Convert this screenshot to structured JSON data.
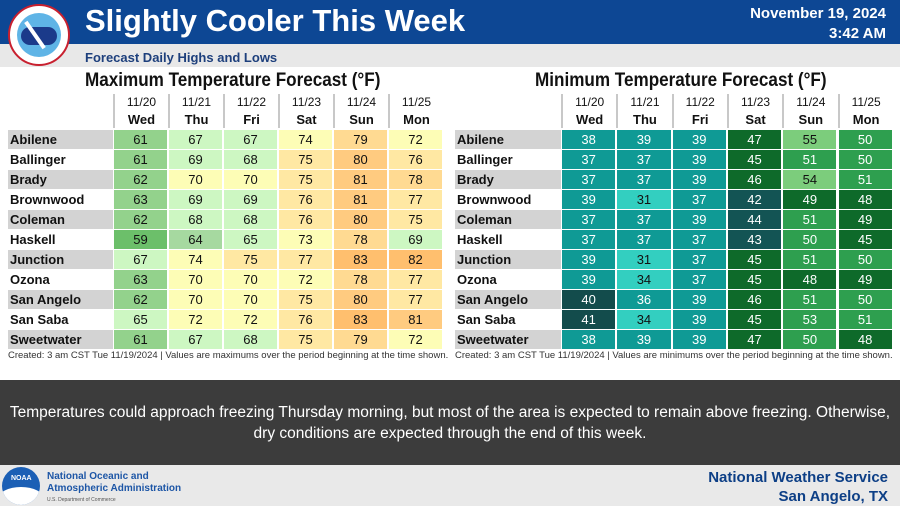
{
  "header": {
    "title": "Slightly Cooler This Week",
    "subtitle": "Forecast Daily Highs and Lows",
    "date": "November 19, 2024",
    "time": "3:42 AM",
    "logo_text": "NATIONAL WEATHER SERVICE"
  },
  "days": [
    {
      "date": "11/20",
      "day": "Wed"
    },
    {
      "date": "11/21",
      "day": "Thu"
    },
    {
      "date": "11/22",
      "day": "Fri"
    },
    {
      "date": "11/23",
      "day": "Sat"
    },
    {
      "date": "11/24",
      "day": "Sun"
    },
    {
      "date": "11/25",
      "day": "Mon"
    }
  ],
  "cities": [
    "Abilene",
    "Ballinger",
    "Brady",
    "Brownwood",
    "Coleman",
    "Haskell",
    "Junction",
    "Ozona",
    "San Angelo",
    "San Saba",
    "Sweetwater"
  ],
  "max_table": {
    "title": "Maximum Temperature Forecast (°F)",
    "footnote": "Created: 3 am CST Tue 11/19/2024  |  Values are maximums over the period beginning at the time shown.",
    "values": [
      [
        61,
        67,
        67,
        74,
        79,
        72
      ],
      [
        61,
        69,
        68,
        75,
        80,
        76
      ],
      [
        62,
        70,
        70,
        75,
        81,
        78
      ],
      [
        63,
        69,
        69,
        76,
        81,
        77
      ],
      [
        62,
        68,
        68,
        76,
        80,
        75
      ],
      [
        59,
        64,
        65,
        73,
        78,
        69
      ],
      [
        67,
        74,
        75,
        77,
        83,
        82
      ],
      [
        63,
        70,
        70,
        72,
        78,
        77
      ],
      [
        62,
        70,
        70,
        75,
        80,
        77
      ],
      [
        65,
        72,
        72,
        76,
        83,
        81
      ],
      [
        61,
        67,
        68,
        75,
        79,
        72
      ]
    ]
  },
  "min_table": {
    "title": "Minimum Temperature Forecast (°F)",
    "footnote": "Created: 3 am CST Tue 11/19/2024  |  Values are minimums over the period beginning at the time shown.",
    "values": [
      [
        38,
        39,
        39,
        47,
        55,
        50
      ],
      [
        37,
        37,
        39,
        45,
        51,
        50
      ],
      [
        37,
        37,
        39,
        46,
        54,
        51
      ],
      [
        39,
        31,
        37,
        42,
        49,
        48
      ],
      [
        37,
        37,
        39,
        44,
        51,
        49
      ],
      [
        37,
        37,
        37,
        43,
        50,
        45
      ],
      [
        39,
        31,
        37,
        45,
        51,
        50
      ],
      [
        39,
        34,
        37,
        45,
        48,
        49
      ],
      [
        40,
        36,
        39,
        46,
        51,
        50
      ],
      [
        41,
        34,
        39,
        45,
        53,
        51
      ],
      [
        38,
        39,
        39,
        47,
        50,
        48
      ]
    ]
  },
  "message": "Temperatures could approach freezing Thursday morning, but most of the area is expected to remain above freezing. Otherwise, dry conditions are expected through the end of this week.",
  "footer": {
    "noaa_line1": "National Oceanic and",
    "noaa_line2": "Atmospheric Administration",
    "noaa_dept": "U.S. Department of Commerce",
    "noaa_logo_text": "NOAA",
    "nws_line1": "National Weather Service",
    "nws_line2": "San Angelo, TX"
  },
  "colors": {
    "header_blue": "#0d4794",
    "row_gray": "#d3d3d3"
  }
}
